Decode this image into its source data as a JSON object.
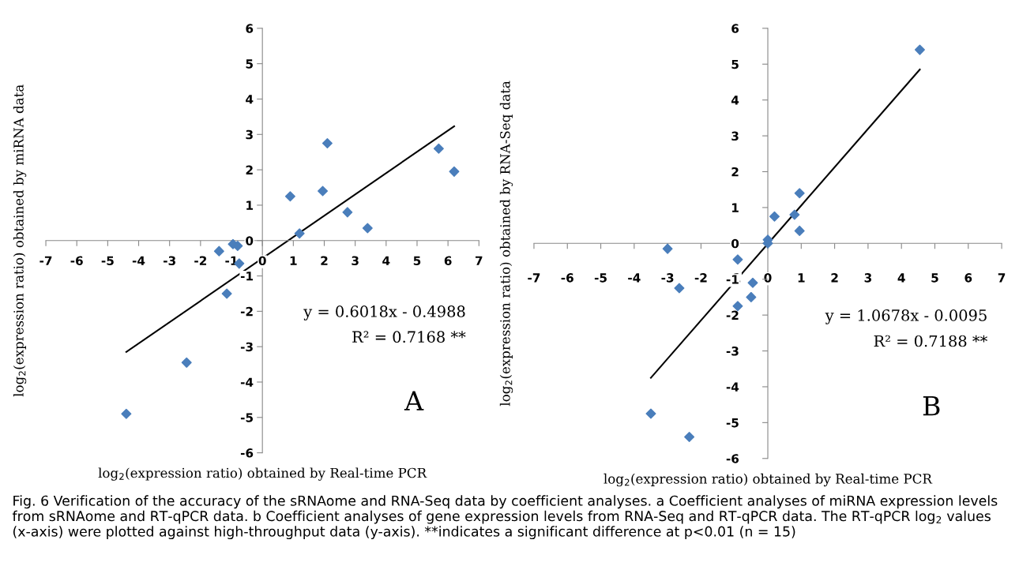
{
  "chart_data": [
    {
      "type": "scatter",
      "xlabel": "log$_{2}$(expression ratio) obtained by Real-time PCR",
      "ylabel": "log$_{2}$(expression ratio) obtained by miRNA data",
      "xlim": [
        -7,
        7
      ],
      "ylim": [
        -6,
        6
      ],
      "xticks": [
        -7,
        -6,
        -5,
        -4,
        -3,
        -2,
        -1,
        0,
        1,
        2,
        3,
        4,
        5,
        6,
        7
      ],
      "yticks": [
        -6,
        -5,
        -4,
        -3,
        -2,
        -1,
        0,
        1,
        2,
        3,
        4,
        5,
        6
      ],
      "grid": false,
      "legend": false,
      "series": [
        {
          "type": "scatter",
          "color": "#4a7ebb",
          "marker": "diamond",
          "x": [
            -4.4,
            -2.45,
            -1.4,
            -1.15,
            -0.95,
            -0.8,
            -0.75,
            0.9,
            1.2,
            1.95,
            2.1,
            2.75,
            3.4,
            5.7,
            6.2
          ],
          "values": [
            -4.9,
            -3.45,
            -0.3,
            -1.5,
            -0.1,
            -0.15,
            -0.65,
            1.25,
            0.2,
            1.4,
            2.75,
            0.8,
            0.35,
            2.6,
            1.95
          ]
        },
        {
          "type": "line",
          "color": "#000000",
          "marker": "none",
          "line_style": "solid",
          "x": [
            -4.4,
            6.2
          ],
          "values": [
            -3.15,
            3.23
          ]
        }
      ],
      "annotations": [
        "y = 0.6018x - 0.4988",
        "R² = 0.7168 **",
        "A",
        "Fig. 6 Verification of the accuracy of the sRNAome and RNA-Seq data by coefficient analyses. a Coefficient analyses of miRNA expression levels from sRNAome and RT-qPCR data. b Coefficient analyses of gene expression levels from RNA-Seq and RT-qPCR data. The RT-qPCR log$_{2}$ values (x-axis) were plotted against high-throughput data (y-axis). **indicates a significant difference at p<0.01 (n = 15)"
      ]
    },
    {
      "type": "scatter",
      "xlabel": "log$_{2}$(expression ratio) obtained by Real-time PCR",
      "ylabel": "log$_{2}$(expression ratio) obtained by RNA-Seq data",
      "xlim": [
        -7,
        7
      ],
      "ylim": [
        -6,
        6
      ],
      "xticks": [
        -7,
        -6,
        -5,
        -4,
        -3,
        -2,
        -1,
        0,
        1,
        2,
        3,
        4,
        5,
        6,
        7
      ],
      "yticks": [
        -6,
        -5,
        -4,
        -3,
        -2,
        -1,
        0,
        1,
        2,
        3,
        4,
        5,
        6
      ],
      "grid": false,
      "legend": false,
      "series": [
        {
          "type": "scatter",
          "color": "#4a7ebb",
          "marker": "diamond",
          "x": [
            -3.5,
            -2.35,
            -3.0,
            -2.65,
            -0.9,
            -0.45,
            -0.5,
            -0.9,
            0.0,
            0.0,
            0.2,
            0.8,
            0.95,
            0.95,
            4.55
          ],
          "values": [
            -4.75,
            -5.4,
            -0.15,
            -1.25,
            -0.45,
            -1.1,
            -1.5,
            -1.75,
            0.1,
            0.0,
            0.75,
            0.8,
            1.4,
            0.35,
            5.4
          ]
        },
        {
          "type": "line",
          "color": "#000000",
          "marker": "none",
          "line_style": "solid",
          "x": [
            -3.5,
            4.55
          ],
          "values": [
            -3.75,
            4.85
          ]
        }
      ],
      "annotations": [
        "y = 1.0678x - 0.0095",
        "R² = 0.7188 **",
        "B"
      ]
    }
  ]
}
